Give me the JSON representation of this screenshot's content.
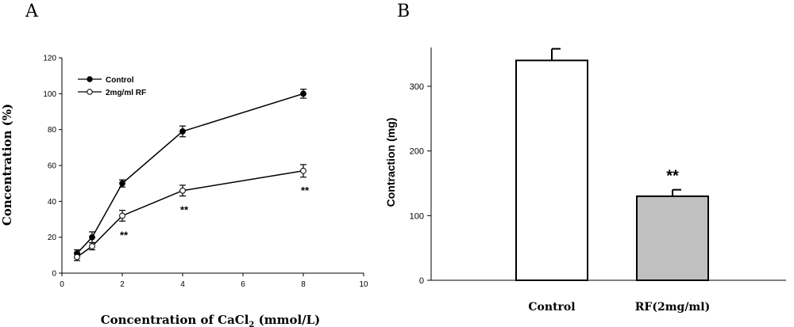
{
  "colors": {
    "axis": "#000000",
    "bar_control": "#ffffff",
    "bar_rf": "#c0c0c0"
  },
  "chart_data": [
    {
      "panel": "A",
      "type": "line",
      "xlabel_main": "Concentration of CaCl",
      "xlabel_sub": "2",
      "xlabel_unit": " (mmol/L)",
      "ylabel": "Concentration (%)",
      "xlim": [
        0,
        10
      ],
      "ylim": [
        0,
        120
      ],
      "xticks": [
        "0",
        "2",
        "4",
        "6",
        "8",
        "10"
      ],
      "yticks": [
        "0",
        "20",
        "40",
        "60",
        "80",
        "100",
        "120"
      ],
      "legend_position": "top-left",
      "series": [
        {
          "name": "Control",
          "marker": "filled-circle",
          "x": [
            0.5,
            1,
            2,
            4,
            8
          ],
          "y": [
            11,
            20,
            50,
            79,
            100
          ],
          "err": [
            2,
            3,
            2,
            3,
            2.5
          ]
        },
        {
          "name": "2mg/ml RF",
          "marker": "open-circle",
          "x": [
            0.5,
            1,
            2,
            4,
            8
          ],
          "y": [
            9,
            15,
            32,
            46,
            57
          ],
          "err": [
            2,
            2,
            3,
            3,
            3.5
          ]
        }
      ],
      "annotations": [
        {
          "x": 2,
          "y": 32,
          "text": "**"
        },
        {
          "x": 4,
          "y": 46,
          "text": "**"
        },
        {
          "x": 8,
          "y": 57,
          "text": "**"
        }
      ]
    },
    {
      "panel": "B",
      "type": "bar",
      "ylabel": "Contraction (mg)",
      "ylim": [
        0,
        360
      ],
      "yticks": [
        "0",
        "100",
        "200",
        "300"
      ],
      "categories": [
        "Control",
        "RF(2mg/ml)"
      ],
      "values": [
        340,
        130
      ],
      "err": [
        18,
        10
      ],
      "annotations": [
        {
          "category": "RF(2mg/ml)",
          "text": "**"
        }
      ]
    }
  ]
}
